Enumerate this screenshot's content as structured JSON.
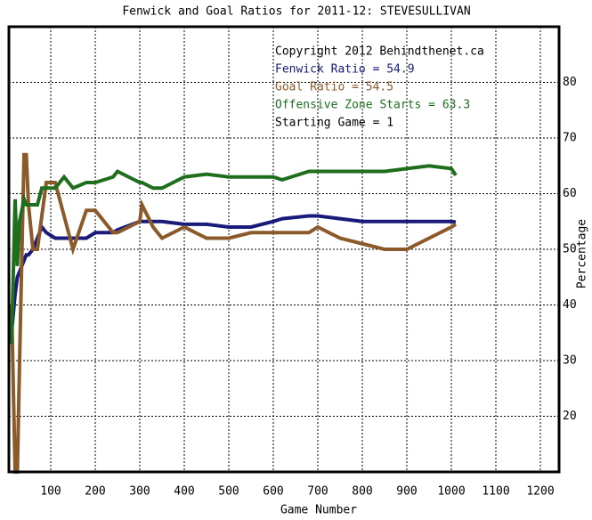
{
  "chart_data": {
    "type": "line",
    "title": "Fenwick and Goal Ratios for 2011-12: STEVESULLIVAN",
    "x_label": "Game Number",
    "y_label": "Percentage",
    "annotations": [
      {
        "text": "Copyright 2012 Behindthenet.ca",
        "color": "#000000"
      },
      {
        "text": "Fenwick Ratio = 54.9",
        "color": "#1a1a7a"
      },
      {
        "text": "Goal Ratio = 54.5",
        "color": "#8b5a2b"
      },
      {
        "text": "Offensive Zone Starts = 63.3",
        "color": "#1e6e1e"
      },
      {
        "text": "Starting Game = 1",
        "color": "#000000"
      }
    ],
    "x": [
      12,
      20,
      25,
      30,
      40,
      45,
      50,
      60,
      70,
      80,
      90,
      110,
      130,
      150,
      180,
      200,
      240,
      250,
      300,
      305,
      330,
      350,
      400,
      450,
      500,
      550,
      600,
      620,
      680,
      700,
      750,
      800,
      850,
      900,
      950,
      1000,
      1010
    ],
    "series": [
      {
        "color": "#1a1a7a",
        "values": [
          35,
          42,
          45,
          46,
          48,
          49,
          49,
          50,
          52,
          54,
          53,
          52,
          52,
          52,
          52,
          53,
          53,
          53.5,
          55,
          55,
          55,
          55,
          54.5,
          54.5,
          54,
          54,
          55,
          55.5,
          56,
          56,
          55.5,
          55,
          55,
          55,
          55,
          55,
          54.9
        ]
      },
      {
        "color": "#8b5a2b",
        "values": [
          40,
          10,
          10,
          30,
          67,
          67,
          58,
          50,
          50,
          56,
          62,
          62,
          56,
          50,
          57,
          57,
          53,
          53,
          55,
          58,
          54,
          52,
          54,
          52,
          52,
          53,
          53,
          53,
          53,
          54,
          52,
          51,
          50,
          50,
          52,
          54,
          54.5
        ]
      },
      {
        "color": "#1e6e1e",
        "values": [
          33,
          59,
          47,
          55,
          59,
          58,
          58,
          58,
          58,
          61,
          61,
          61,
          63,
          61,
          62,
          62,
          63,
          64,
          62,
          62,
          61,
          61,
          63,
          63.5,
          63,
          63,
          63,
          62.5,
          64,
          64,
          64,
          64,
          64,
          64.5,
          65,
          64.5,
          63.3
        ]
      }
    ],
    "xlim": [
      6,
      1242
    ],
    "ylim": [
      10,
      90
    ],
    "xticks": [
      100,
      200,
      300,
      400,
      500,
      600,
      700,
      800,
      900,
      1000,
      1100,
      1200
    ],
    "yticks": [
      20,
      30,
      40,
      50,
      60,
      70,
      80
    ],
    "grid": true
  }
}
